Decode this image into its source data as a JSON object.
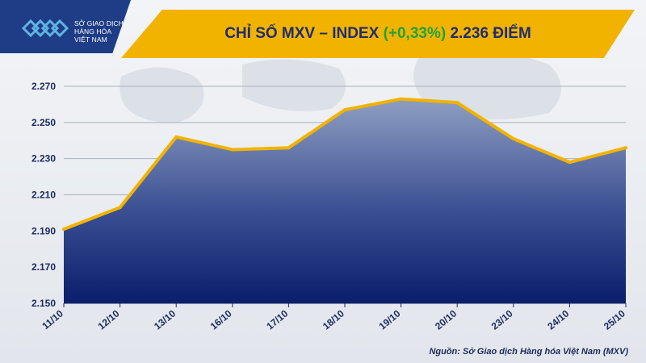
{
  "logo": {
    "lines": [
      "SỞ GIAO DỊCH",
      "HÀNG HÓA",
      "VIỆT NAM"
    ]
  },
  "title": {
    "prefix": "CHỈ SỐ MXV – INDEX ",
    "change": "(+0,33%)",
    "suffix": " 2.236 ĐIỂM"
  },
  "source": "Nguồn: Sở Giao dịch Hàng hóa Việt Nam (MXV)",
  "colors": {
    "banner": "#f2b300",
    "navy": "#1e3d86",
    "line": "#f2b300",
    "area_top": "#8e9ec1",
    "area_bottom": "#0b1d6b",
    "positive": "#1fa33a"
  },
  "chart_data": {
    "type": "area",
    "categories": [
      "11/10",
      "12/10",
      "13/10",
      "16/10",
      "17/10",
      "18/10",
      "19/10",
      "20/10",
      "23/10",
      "24/10",
      "25/10"
    ],
    "values": [
      2191,
      2203,
      2242,
      2235,
      2236,
      2257,
      2263,
      2261,
      2241,
      2228,
      2236
    ],
    "ylim": [
      2150,
      2270
    ],
    "yticks": [
      2150,
      2170,
      2190,
      2210,
      2230,
      2250,
      2270
    ],
    "ytick_labels": [
      "2.150",
      "2.170",
      "2.190",
      "2.210",
      "2.230",
      "2.250",
      "2.270"
    ],
    "grid": true,
    "title": "",
    "xlabel": "",
    "ylabel": ""
  }
}
